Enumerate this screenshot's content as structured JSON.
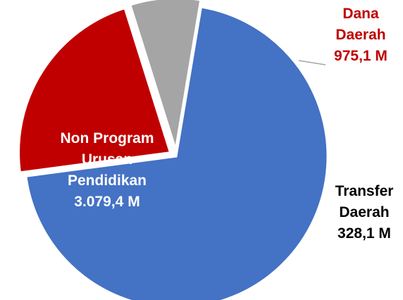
{
  "chart_data": {
    "type": "pie",
    "categories": [
      "Non Program Urusan Pendidikan",
      "Dana Daerah",
      "Transfer Daerah"
    ],
    "values": [
      3079.4,
      975.1,
      328.1
    ],
    "value_labels": [
      "3.079,4 M",
      "975,1 M",
      "328,1 M"
    ],
    "colors": [
      "#4472c4",
      "#c00000",
      "#a5a5a5"
    ]
  }
}
